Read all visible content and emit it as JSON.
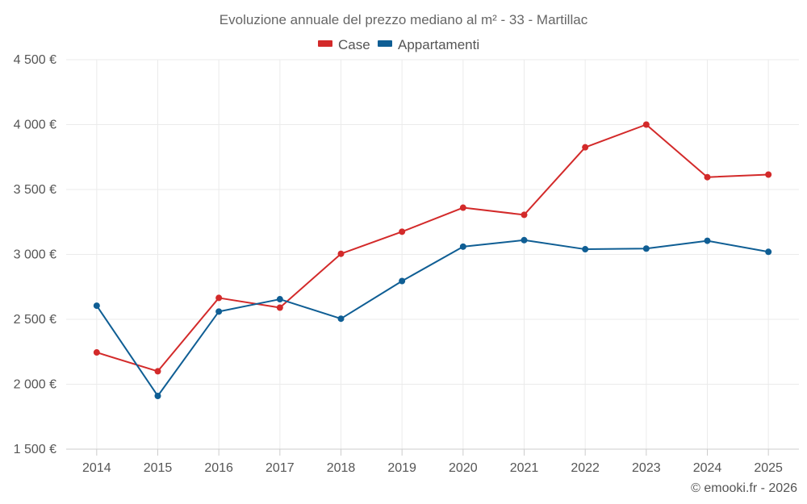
{
  "chart_data": {
    "type": "line",
    "title": "Evoluzione annuale del prezzo mediano al m² - 33 - Martillac",
    "xlabel": "",
    "ylabel": "",
    "categories": [
      "2014",
      "2015",
      "2016",
      "2017",
      "2018",
      "2019",
      "2020",
      "2021",
      "2022",
      "2023",
      "2024",
      "2025"
    ],
    "ylim": [
      1500,
      4500
    ],
    "yticks": [
      1500,
      2000,
      2500,
      3000,
      3500,
      4000,
      4500
    ],
    "ytick_labels": [
      "1 500 €",
      "2 000 €",
      "2 500 €",
      "3 000 €",
      "3 500 €",
      "4 000 €",
      "4 500 €"
    ],
    "grid": true,
    "legend_position": "top-center",
    "series": [
      {
        "name": "Case",
        "color": "#d32a2a",
        "values": [
          2245,
          2100,
          2665,
          2590,
          3005,
          3175,
          3360,
          3305,
          3825,
          4000,
          3595,
          3615
        ]
      },
      {
        "name": "Appartamenti",
        "color": "#0f5e94",
        "values": [
          2605,
          1910,
          2560,
          2655,
          2505,
          2795,
          3060,
          3110,
          3040,
          3045,
          3105,
          3020
        ]
      }
    ]
  },
  "credit": "© emooki.fr - 2026"
}
